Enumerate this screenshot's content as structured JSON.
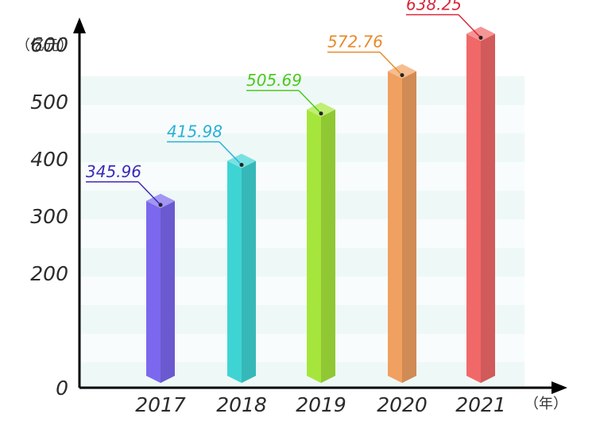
{
  "chart_data": {
    "type": "bar",
    "categories": [
      "2017",
      "2018",
      "2019",
      "2020",
      "2021"
    ],
    "values": [
      345.96,
      415.98,
      505.69,
      572.76,
      638.25
    ],
    "value_labels": [
      "345.96",
      "415.98",
      "505.69",
      "572.76",
      "638.25"
    ],
    "colors": [
      "#7b68ee",
      "#3fd4d4",
      "#a6e63c",
      "#f0a060",
      "#f06868"
    ],
    "label_colors": [
      "#3a2ab8",
      "#2ab0d8",
      "#4ec81e",
      "#e88a2a",
      "#d8283a"
    ],
    "y_ticks": [
      "0",
      "200",
      "300",
      "400",
      "500",
      "600"
    ],
    "ylim": [
      0,
      650
    ],
    "ylabel": "（亿元）",
    "xlabel": "（年）",
    "grid": false,
    "legend": "none"
  }
}
